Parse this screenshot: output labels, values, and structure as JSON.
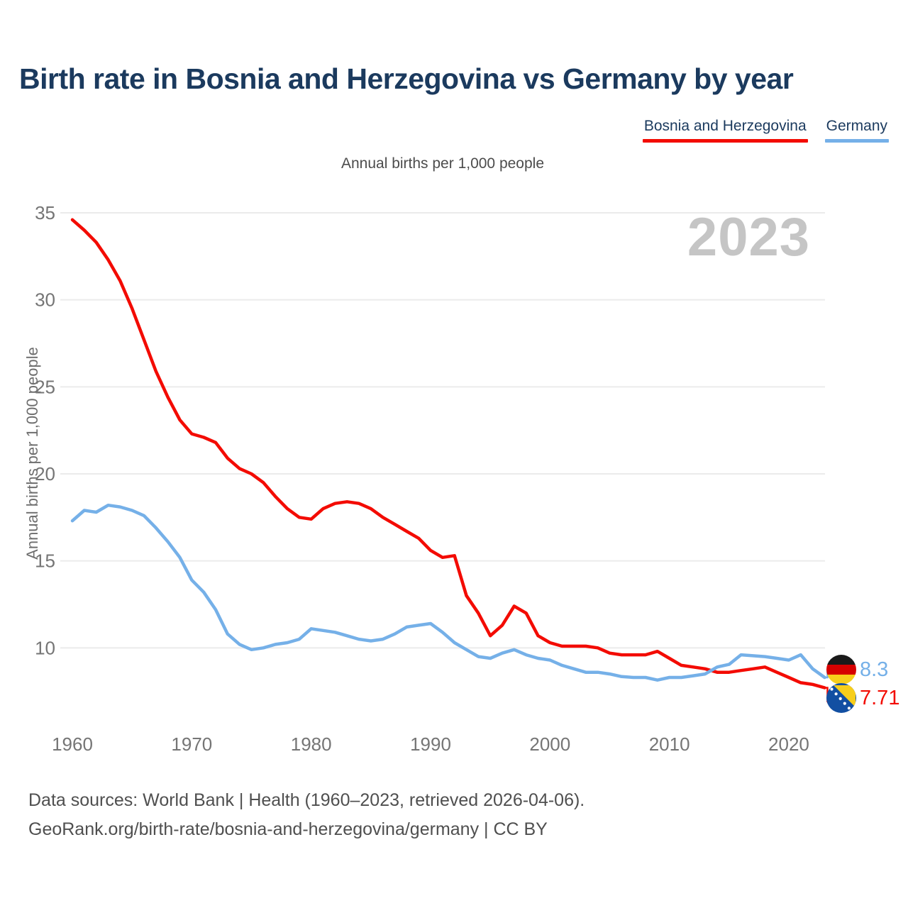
{
  "header": {
    "title": "Birth rate in Bosnia and Herzegovina vs Germany by year"
  },
  "legend": {
    "items": [
      {
        "label": "Bosnia and Herzegovina",
        "color": "#f30b02"
      },
      {
        "label": "Germany",
        "color": "#75b0e8"
      }
    ]
  },
  "subtitle": "Annual births per 1,000 people",
  "watermark": "2023",
  "chart_data": {
    "type": "line",
    "title": "Birth rate in Bosnia and Herzegovina vs Germany by year",
    "subtitle": "Annual births per 1,000 people",
    "xlabel": "",
    "ylabel": "Annual births per 1,000 people",
    "xlim": [
      1960,
      2023
    ],
    "ylim": [
      7,
      36
    ],
    "y_ticks": [
      10,
      15,
      20,
      25,
      30,
      35
    ],
    "x_ticks": [
      1960,
      1970,
      1980,
      1990,
      2000,
      2010,
      2020
    ],
    "grid": "horizontal",
    "legend_position": "top-right",
    "watermark": "2023",
    "x": [
      1960,
      1961,
      1962,
      1963,
      1964,
      1965,
      1966,
      1967,
      1968,
      1969,
      1970,
      1971,
      1972,
      1973,
      1974,
      1975,
      1976,
      1977,
      1978,
      1979,
      1980,
      1981,
      1982,
      1983,
      1984,
      1985,
      1986,
      1987,
      1988,
      1989,
      1990,
      1991,
      1992,
      1993,
      1994,
      1995,
      1996,
      1997,
      1998,
      1999,
      2000,
      2001,
      2002,
      2003,
      2004,
      2005,
      2006,
      2007,
      2008,
      2009,
      2010,
      2011,
      2012,
      2013,
      2014,
      2015,
      2016,
      2017,
      2018,
      2019,
      2020,
      2021,
      2022,
      2023
    ],
    "series": [
      {
        "name": "Bosnia and Herzegovina",
        "color": "#f30b02",
        "end_label": "7.71",
        "values": [
          34.6,
          34.0,
          33.3,
          32.3,
          31.1,
          29.5,
          27.7,
          25.9,
          24.4,
          23.1,
          22.3,
          22.1,
          21.8,
          20.9,
          20.3,
          20.0,
          19.5,
          18.7,
          18.0,
          17.5,
          17.4,
          18.0,
          18.3,
          18.4,
          18.3,
          18.0,
          17.5,
          17.1,
          16.7,
          16.3,
          15.6,
          15.2,
          15.3,
          13.0,
          12.0,
          10.7,
          11.3,
          12.4,
          12.0,
          10.7,
          10.3,
          10.1,
          10.1,
          10.1,
          10.0,
          9.7,
          9.6,
          9.6,
          9.6,
          9.8,
          9.4,
          9.0,
          8.9,
          8.8,
          8.6,
          8.6,
          8.7,
          8.8,
          8.9,
          8.6,
          8.3,
          8.0,
          7.9,
          7.71
        ]
      },
      {
        "name": "Germany",
        "color": "#75b0e8",
        "end_label": "8.3",
        "values": [
          17.3,
          17.9,
          17.8,
          18.2,
          18.1,
          17.9,
          17.6,
          16.9,
          16.1,
          15.2,
          13.9,
          13.2,
          12.2,
          10.8,
          10.2,
          9.9,
          10.0,
          10.2,
          10.3,
          10.5,
          11.1,
          11.0,
          10.9,
          10.7,
          10.5,
          10.4,
          10.5,
          10.8,
          11.2,
          11.3,
          11.4,
          10.9,
          10.3,
          9.9,
          9.5,
          9.4,
          9.7,
          9.9,
          9.6,
          9.4,
          9.3,
          9.0,
          8.8,
          8.6,
          8.6,
          8.5,
          8.35,
          8.3,
          8.3,
          8.15,
          8.3,
          8.3,
          8.4,
          8.5,
          8.9,
          9.05,
          9.6,
          9.55,
          9.5,
          9.4,
          9.3,
          9.6,
          8.8,
          8.3
        ]
      }
    ]
  },
  "footer": {
    "line1": "Data sources: World Bank | Health (1960–2023, retrieved 2026-04-06).",
    "line2": "GeoRank.org/birth-rate/bosnia-and-herzegovina/germany | CC BY"
  }
}
